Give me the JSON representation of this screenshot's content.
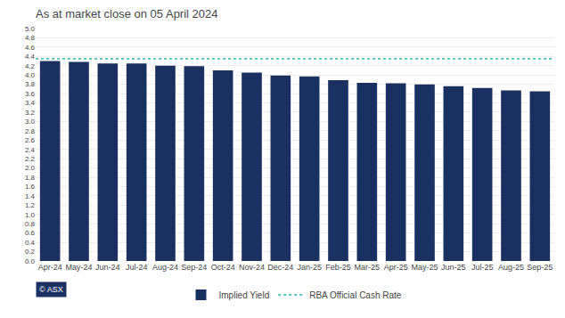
{
  "chart_data": {
    "type": "bar",
    "title": "As at market close on 05 April 2024",
    "categories": [
      "Apr-24",
      "May-24",
      "Jun-24",
      "Jul-24",
      "Aug-24",
      "Sep-24",
      "Oct-24",
      "Nov-24",
      "Dec-24",
      "Jan-25",
      "Feb-25",
      "Mar-25",
      "Apr-25",
      "May-25",
      "Jun-25",
      "Jul-25",
      "Aug-25",
      "Sep-25"
    ],
    "series": [
      {
        "name": "Implied Yield",
        "color": "#1a3060",
        "values": [
          4.3,
          4.28,
          4.25,
          4.25,
          4.2,
          4.19,
          4.1,
          4.05,
          3.99,
          3.97,
          3.89,
          3.83,
          3.82,
          3.8,
          3.76,
          3.72,
          3.67,
          3.65
        ]
      }
    ],
    "reference_line": {
      "name": "RBA Official Cash Rate",
      "value": 4.35,
      "color": "#5bc8c8",
      "line_style": "dotted"
    },
    "ylim": [
      0.0,
      5.0
    ],
    "yticks": [
      {
        "value": 0,
        "label": "0.0"
      },
      0.2,
      0.4,
      0.6,
      0.8,
      {
        "value": 1,
        "label": "1.0"
      },
      1.2,
      1.4,
      1.6,
      1.8,
      {
        "value": 2,
        "label": "2.0"
      },
      2.2,
      2.4,
      2.6,
      2.8,
      {
        "value": 3,
        "label": "3.0"
      },
      3.2,
      3.4,
      3.6,
      3.8,
      {
        "value": 4,
        "label": "4.0"
      },
      4.2,
      4.4,
      4.6,
      4.8,
      {
        "value": 5,
        "label": "5.0"
      }
    ],
    "grid": true,
    "legend": "bottom",
    "annotations": [
      "© ASX"
    ]
  }
}
